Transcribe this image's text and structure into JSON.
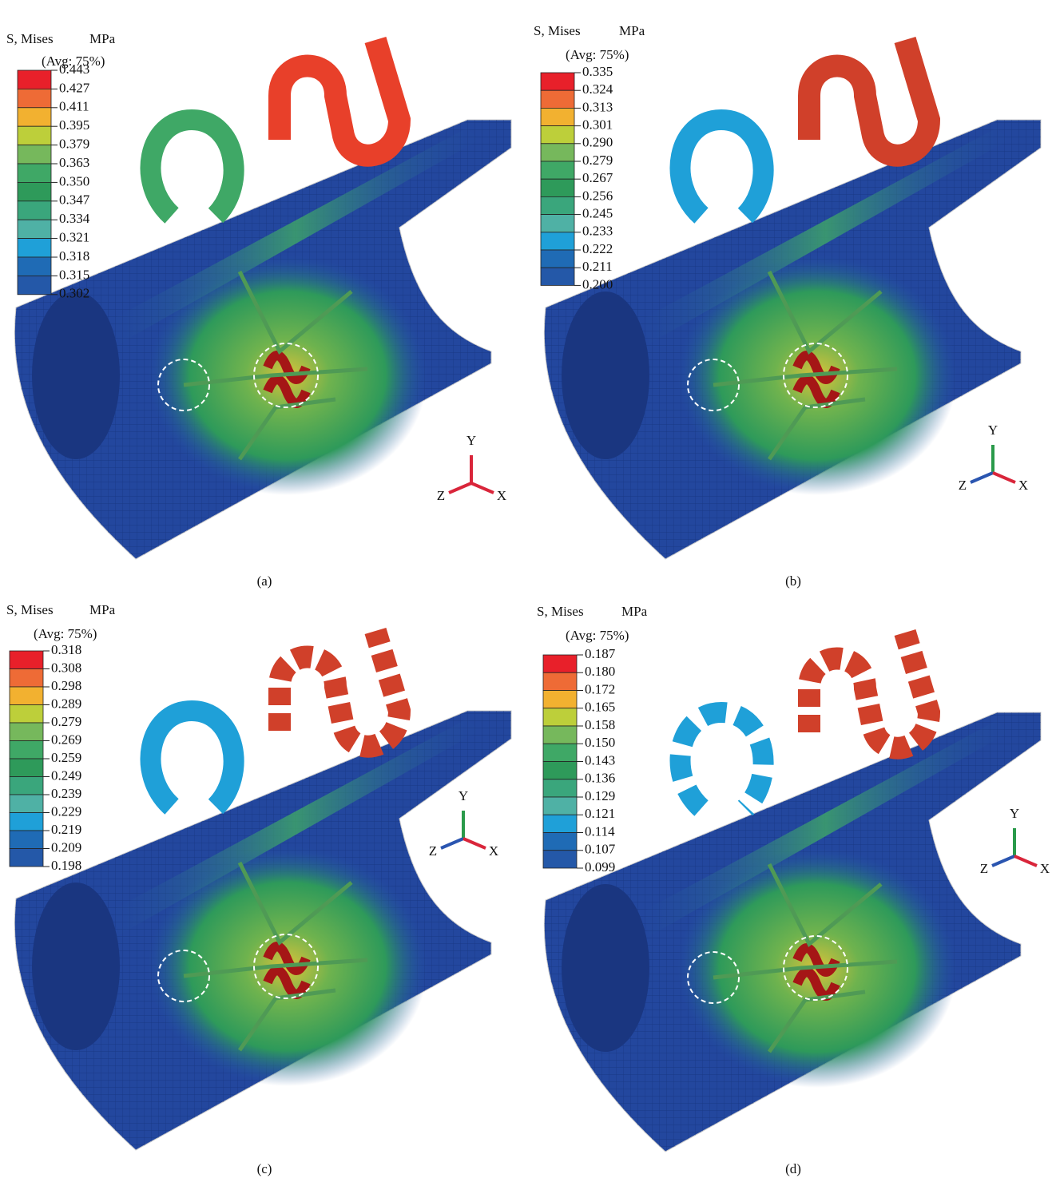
{
  "panels": [
    {
      "caption": "(a)",
      "legend": {
        "title": "S, Mises",
        "unit": "MPa",
        "subtitle": "(Avg: 75%)",
        "values": [
          "0.443",
          "0.427",
          "0.411",
          "0.395",
          "0.379",
          "0.363",
          "0.350",
          "0.347",
          "0.334",
          "0.321",
          "0.318",
          "0.315",
          "0.302"
        ]
      },
      "axes": {
        "y": "Y",
        "z": "Z",
        "x": "X"
      }
    },
    {
      "caption": "(b)",
      "legend": {
        "title": "S, Mises",
        "unit": "MPa",
        "subtitle": "(Avg: 75%)",
        "values": [
          "0.335",
          "0.324",
          "0.313",
          "0.301",
          "0.290",
          "0.279",
          "0.267",
          "0.256",
          "0.245",
          "0.233",
          "0.222",
          "0.211",
          "0.200"
        ]
      },
      "axes": {
        "y": "Y",
        "z": "Z",
        "x": "X"
      }
    },
    {
      "caption": "(c)",
      "legend": {
        "title": "S, Mises",
        "unit": "MPa",
        "subtitle": "(Avg: 75%)",
        "values": [
          "0.318",
          "0.308",
          "0.298",
          "0.289",
          "0.279",
          "0.269",
          "0.259",
          "0.249",
          "0.239",
          "0.229",
          "0.219",
          "0.209",
          "0.198"
        ]
      },
      "axes": {
        "y": "Y",
        "z": "Z",
        "x": "X"
      }
    },
    {
      "caption": "(d)",
      "legend": {
        "title": "S, Mises",
        "unit": "MPa",
        "subtitle": "(Avg: 75%)",
        "values": [
          "0.187",
          "0.180",
          "0.172",
          "0.165",
          "0.158",
          "0.150",
          "0.143",
          "0.136",
          "0.129",
          "0.121",
          "0.114",
          "0.107",
          "0.099"
        ]
      },
      "axes": {
        "y": "Y",
        "z": "Z",
        "x": "X"
      }
    }
  ]
}
